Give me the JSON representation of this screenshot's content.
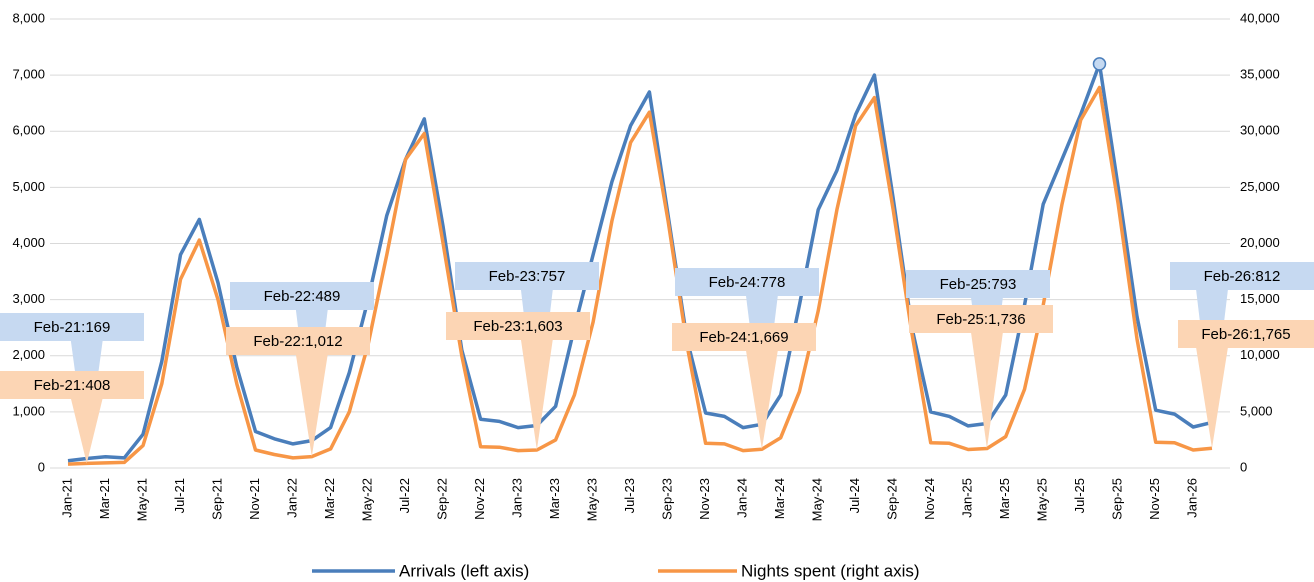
{
  "chart_data": {
    "type": "line",
    "categories": [
      "Jan-21",
      null,
      "Mar-21",
      null,
      "May-21",
      null,
      "Jul-21",
      null,
      "Sep-21",
      null,
      "Nov-21",
      null,
      "Jan-22",
      null,
      "Mar-22",
      null,
      "May-22",
      null,
      "Jul-22",
      null,
      "Sep-22",
      null,
      "Nov-22",
      null,
      "Jan-23",
      null,
      "Mar-23",
      null,
      "May-23",
      null,
      "Jul-23",
      null,
      "Sep-23",
      null,
      "Nov-23",
      null,
      "Jan-24",
      null,
      "Mar-24",
      null,
      "May-24",
      null,
      "Jul-24",
      null,
      "Sep-24",
      null,
      "Nov-24",
      null,
      "Jan-25",
      null,
      "Mar-25",
      null,
      "May-25",
      null,
      "Jul-25",
      null,
      "Sep-25",
      null,
      "Nov-25",
      null,
      "Jan-26",
      null
    ],
    "series": [
      {
        "name": "Arrivals (left axis)",
        "color": "#4a7ebb",
        "axis": "y",
        "values": [
          130,
          169,
          200,
          180,
          600,
          1900,
          3800,
          4430,
          3300,
          1800,
          650,
          520,
          430,
          489,
          720,
          1700,
          3000,
          4500,
          5500,
          6220,
          4300,
          2100,
          870,
          830,
          720,
          757,
          1100,
          2500,
          3800,
          5100,
          6100,
          6700,
          4500,
          2300,
          980,
          920,
          720,
          778,
          1300,
          2900,
          4600,
          5300,
          6300,
          7000,
          4800,
          2500,
          1000,
          920,
          750,
          793,
          1300,
          2900,
          4700,
          5500,
          6300,
          7200,
          5000,
          2700,
          1030,
          960,
          730,
          812
        ],
        "value_labels": [
          null,
          "Feb-21:169",
          null,
          null,
          null,
          null,
          null,
          null,
          null,
          null,
          null,
          null,
          null,
          "Feb-22:489",
          null,
          null,
          null,
          null,
          null,
          null,
          null,
          null,
          null,
          null,
          null,
          "Feb-23:757",
          null,
          null,
          null,
          null,
          null,
          null,
          null,
          null,
          null,
          null,
          null,
          "Feb-24:778",
          null,
          null,
          null,
          null,
          null,
          null,
          null,
          null,
          null,
          null,
          null,
          "Feb-25:793",
          null,
          null,
          null,
          null,
          null,
          null,
          null,
          null,
          null,
          null,
          null,
          "Feb-26:812"
        ],
        "highlighted_point": 55
      },
      {
        "name": "Nights spent (right axis)",
        "color": "#f79646",
        "axis": "y2",
        "values": [
          350,
          408,
          450,
          500,
          2000,
          7500,
          16800,
          20300,
          15000,
          7500,
          1600,
          1200,
          900,
          1012,
          1700,
          5000,
          11000,
          19000,
          27500,
          29800,
          20000,
          10000,
          1900,
          1850,
          1550,
          1603,
          2500,
          6500,
          13000,
          22000,
          29000,
          31700,
          22000,
          11000,
          2200,
          2150,
          1550,
          1669,
          2700,
          6800,
          14000,
          23000,
          30500,
          33000,
          23000,
          12000,
          2250,
          2200,
          1650,
          1736,
          2800,
          7000,
          14500,
          23500,
          31000,
          33900,
          23500,
          11500,
          2300,
          2250,
          1600,
          1765
        ],
        "value_labels": [
          null,
          "Feb-21:408",
          null,
          null,
          null,
          null,
          null,
          null,
          null,
          null,
          null,
          null,
          null,
          "Feb-22:1,012",
          null,
          null,
          null,
          null,
          null,
          null,
          null,
          null,
          null,
          null,
          null,
          "Feb-23:1,603",
          null,
          null,
          null,
          null,
          null,
          null,
          null,
          null,
          null,
          null,
          null,
          "Feb-24:1,669",
          null,
          null,
          null,
          null,
          null,
          null,
          null,
          null,
          null,
          null,
          null,
          "Feb-25:1,736",
          null,
          null,
          null,
          null,
          null,
          null,
          null,
          null,
          null,
          null,
          null,
          "Feb-26:1,765"
        ]
      }
    ],
    "ylim": [
      0,
      8000
    ],
    "yticks": [
      0,
      {
        "value": 1000,
        "label": "1,000"
      },
      {
        "value": 2000,
        "label": "2,000"
      },
      {
        "value": 3000,
        "label": "3,000"
      },
      {
        "value": 4000,
        "label": "4,000"
      },
      {
        "value": 5000,
        "label": "5,000"
      },
      {
        "value": 6000,
        "label": "6,000"
      },
      {
        "value": 7000,
        "label": "7,000"
      },
      {
        "value": 8000,
        "label": "8,000"
      }
    ],
    "y2lim": [
      0,
      40000
    ],
    "y2ticks": [
      0,
      {
        "value": 5000,
        "label": "5,000"
      },
      {
        "value": 10000,
        "label": "10,000"
      },
      {
        "value": 15000,
        "label": "15,000"
      },
      {
        "value": 20000,
        "label": "20,000"
      },
      {
        "value": 25000,
        "label": "25,000"
      },
      {
        "value": 30000,
        "label": "30,000"
      },
      {
        "value": 35000,
        "label": "35,000"
      },
      {
        "value": 40000,
        "label": "40,000"
      }
    ],
    "grid": true
  }
}
